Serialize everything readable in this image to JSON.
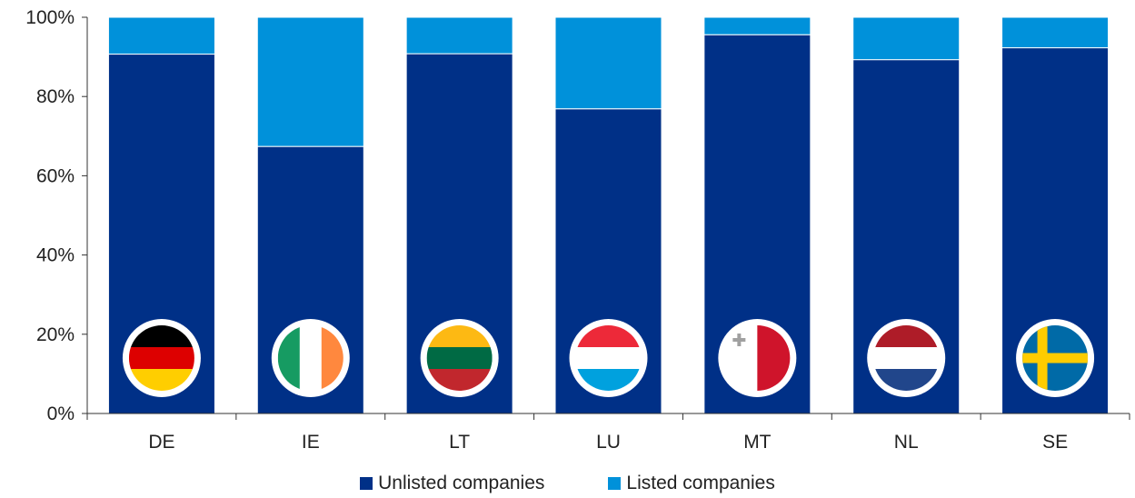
{
  "chart_data": {
    "type": "bar",
    "stacked": true,
    "categories": [
      "DE",
      "IE",
      "LT",
      "LU",
      "MT",
      "NL",
      "SE"
    ],
    "series": [
      {
        "name": "Unlisted companies",
        "color": "#003087",
        "values": [
          90.7,
          67.4,
          90.8,
          76.9,
          95.6,
          89.3,
          92.3
        ]
      },
      {
        "name": "Listed companies",
        "color": "#0091DA",
        "values": [
          9.3,
          32.6,
          9.2,
          23.1,
          4.4,
          10.7,
          7.7
        ]
      }
    ],
    "ylim": [
      0,
      100
    ],
    "yticks": [
      "0%",
      "20%",
      "40%",
      "60%",
      "80%",
      "100%"
    ],
    "grid": false,
    "legend_position": "bottom",
    "flags": [
      {
        "country": "DE",
        "icon": "germany-flag-icon",
        "colors": [
          "#000000",
          "#DD0000",
          "#FFCE00"
        ],
        "orientation": "horizontal"
      },
      {
        "country": "IE",
        "icon": "ireland-flag-icon",
        "colors": [
          "#169B62",
          "#FFFFFF",
          "#FF883E"
        ],
        "orientation": "vertical"
      },
      {
        "country": "LT",
        "icon": "lithuania-flag-icon",
        "colors": [
          "#FDB913",
          "#006A44",
          "#C1272D"
        ],
        "orientation": "horizontal"
      },
      {
        "country": "LU",
        "icon": "luxembourg-flag-icon",
        "colors": [
          "#ED2939",
          "#FFFFFF",
          "#00A1DE"
        ],
        "orientation": "horizontal"
      },
      {
        "country": "MT",
        "icon": "malta-flag-icon",
        "colors": [
          "#FFFFFF",
          "#CF142B"
        ],
        "orientation": "vertical"
      },
      {
        "country": "NL",
        "icon": "netherlands-flag-icon",
        "colors": [
          "#AE1C28",
          "#FFFFFF",
          "#21468B"
        ],
        "orientation": "horizontal"
      },
      {
        "country": "SE",
        "icon": "sweden-flag-icon",
        "colors": [
          "#006AA7",
          "#FECC00"
        ],
        "orientation": "cross"
      }
    ]
  }
}
